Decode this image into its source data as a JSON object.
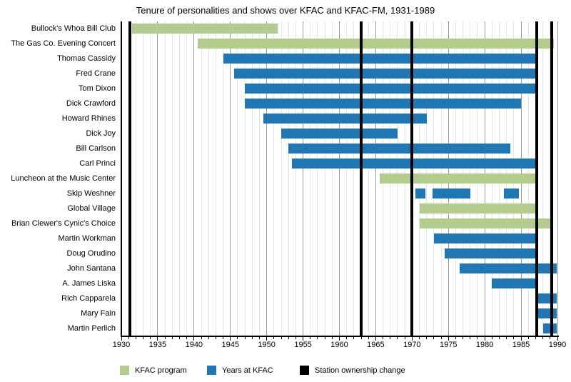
{
  "chart_data": {
    "type": "bar",
    "variant": "horizontal-gantt-timeline",
    "title": "Tenure of personalities and shows over KFAC and KFAC-FM, 1931-1989",
    "x_axis": {
      "min": 1930,
      "max": 1990,
      "major_ticks": [
        1930,
        1935,
        1940,
        1945,
        1950,
        1955,
        1960,
        1965,
        1970,
        1975,
        1980,
        1985,
        1990
      ],
      "minor_tick_interval": 1,
      "grid": true
    },
    "legend": [
      {
        "label": "KFAC program",
        "color": "#b3cc8e"
      },
      {
        "label": "Years at KFAC",
        "color": "#2077b4"
      },
      {
        "label": "Station ownership change",
        "color": "#000000"
      }
    ],
    "legend_position": "bottom",
    "ownership_change_years": [
      1931.2,
      1963,
      1970,
      1987.2,
      1989.2
    ],
    "rows": [
      {
        "label": "Bullock's Whoa Bill Club",
        "series": "KFAC program",
        "segments": [
          [
            1931.5,
            1951.5
          ]
        ]
      },
      {
        "label": "The Gas Co. Evening Concert",
        "series": "KFAC program",
        "segments": [
          [
            1940.5,
            1989.5
          ]
        ]
      },
      {
        "label": "Thomas Cassidy",
        "series": "Years at KFAC",
        "segments": [
          [
            1944,
            1987
          ]
        ]
      },
      {
        "label": "Fred Crane",
        "series": "Years at KFAC",
        "segments": [
          [
            1945.5,
            1987
          ]
        ]
      },
      {
        "label": "Tom Dixon",
        "series": "Years at KFAC",
        "segments": [
          [
            1947,
            1987
          ]
        ]
      },
      {
        "label": "Dick Crawford",
        "series": "Years at KFAC",
        "segments": [
          [
            1947,
            1985
          ]
        ]
      },
      {
        "label": "Howard Rhines",
        "series": "Years at KFAC",
        "segments": [
          [
            1949.5,
            1972
          ]
        ]
      },
      {
        "label": "Dick Joy",
        "series": "Years at KFAC",
        "segments": [
          [
            1952,
            1968
          ]
        ]
      },
      {
        "label": "Bill Carlson",
        "series": "Years at KFAC",
        "segments": [
          [
            1953,
            1983.5
          ]
        ]
      },
      {
        "label": "Carl Princi",
        "series": "Years at KFAC",
        "segments": [
          [
            1953.5,
            1987
          ]
        ]
      },
      {
        "label": "Luncheon at the Music Center",
        "series": "KFAC program",
        "segments": [
          [
            1965.5,
            1987
          ]
        ]
      },
      {
        "label": "Skip Weshner",
        "series": "Years at KFAC",
        "segments": [
          [
            1970.5,
            1971.8
          ],
          [
            1972.8,
            1978
          ],
          [
            1982.6,
            1984.7
          ]
        ]
      },
      {
        "label": "Global Village",
        "series": "KFAC program",
        "segments": [
          [
            1971,
            1987
          ]
        ]
      },
      {
        "label": "Brian Clewer's Cynic's Choice",
        "series": "KFAC program",
        "segments": [
          [
            1971,
            1989
          ]
        ]
      },
      {
        "label": "Martin Workman",
        "series": "Years at KFAC",
        "segments": [
          [
            1973,
            1987
          ]
        ]
      },
      {
        "label": "Doug Orudino",
        "series": "Years at KFAC",
        "segments": [
          [
            1974.5,
            1987
          ]
        ]
      },
      {
        "label": "John Santana",
        "series": "Years at KFAC",
        "segments": [
          [
            1976.5,
            1989.9
          ]
        ]
      },
      {
        "label": "A. James Liska",
        "series": "Years at KFAC",
        "segments": [
          [
            1981,
            1987
          ]
        ]
      },
      {
        "label": "Rich Capparela",
        "series": "Years at KFAC",
        "segments": [
          [
            1987,
            1989.9
          ]
        ]
      },
      {
        "label": "Mary Fain",
        "series": "Years at KFAC",
        "segments": [
          [
            1987,
            1989.9
          ]
        ]
      },
      {
        "label": "Martin Perlich",
        "series": "Years at KFAC",
        "segments": [
          [
            1988,
            1989.9
          ]
        ]
      }
    ]
  }
}
